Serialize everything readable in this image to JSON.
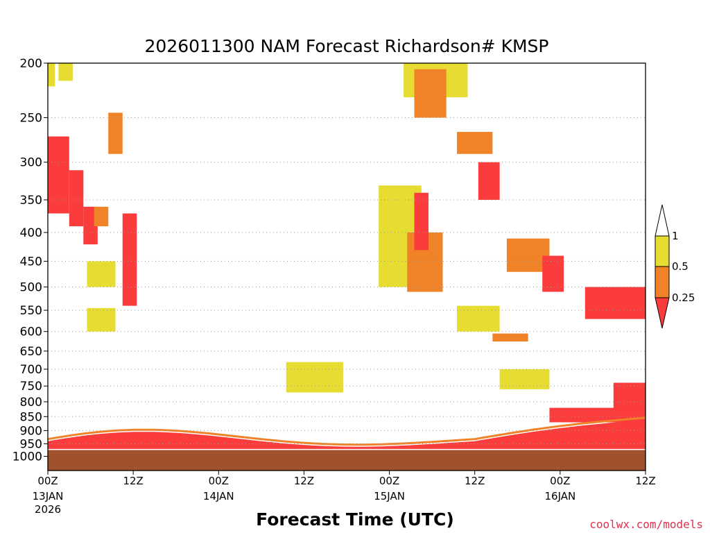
{
  "chart_data": {
    "type": "heatmap",
    "title": "2026011300 NAM Forecast Richardson# KMSP",
    "xlabel": "Forecast Time (UTC)",
    "ylabel": "",
    "x_range_hours": [
      0,
      84
    ],
    "y_range_hPa": [
      200,
      1000
    ],
    "y_ticks": [
      {
        "value": 200,
        "label": "200"
      },
      {
        "value": 250,
        "label": "250"
      },
      {
        "value": 300,
        "label": "300"
      },
      {
        "value": 350,
        "label": "350"
      },
      {
        "value": 400,
        "label": "400"
      },
      {
        "value": 450,
        "label": "450"
      },
      {
        "value": 500,
        "label": "500"
      },
      {
        "value": 550,
        "label": "550"
      },
      {
        "value": 600,
        "label": "600"
      },
      {
        "value": 650,
        "label": "650"
      },
      {
        "value": 700,
        "label": "700"
      },
      {
        "value": 750,
        "label": "750"
      },
      {
        "value": 800,
        "label": "800"
      },
      {
        "value": 850,
        "label": "850"
      },
      {
        "value": 900,
        "label": "900"
      },
      {
        "value": 950,
        "label": "950"
      },
      {
        "value": 1000,
        "label": "1000"
      }
    ],
    "x_ticks": [
      {
        "hour": 0,
        "label": "00Z",
        "date": "13JAN",
        "year": "2026"
      },
      {
        "hour": 12,
        "label": "12Z",
        "date": "",
        "year": ""
      },
      {
        "hour": 24,
        "label": "00Z",
        "date": "14JAN",
        "year": ""
      },
      {
        "hour": 36,
        "label": "12Z",
        "date": "",
        "year": ""
      },
      {
        "hour": 48,
        "label": "00Z",
        "date": "15JAN",
        "year": ""
      },
      {
        "hour": 60,
        "label": "12Z",
        "date": "",
        "year": ""
      },
      {
        "hour": 72,
        "label": "00Z",
        "date": "16JAN",
        "year": ""
      },
      {
        "hour": 84,
        "label": "12Z",
        "date": "",
        "year": ""
      }
    ],
    "colorbar": {
      "levels": [
        {
          "label": "1",
          "value": 1.0
        },
        {
          "label": "0.5",
          "value": 0.5
        },
        {
          "label": "0.25",
          "value": 0.25
        }
      ],
      "bins": [
        {
          "range": "> 1",
          "color": "#ffffff"
        },
        {
          "range": "0.5 - 1",
          "color": "#e6dc32"
        },
        {
          "range": "0.25 - 0.5",
          "color": "#f08228"
        },
        {
          "range": "< 0.25",
          "color": "#fa3c3c"
        }
      ]
    },
    "regions": [
      {
        "hours": [
          0,
          3
        ],
        "p": [
          270,
          370
        ],
        "ri_bin": "<0.25"
      },
      {
        "hours": [
          3,
          5
        ],
        "p": [
          310,
          390
        ],
        "ri_bin": "<0.25"
      },
      {
        "hours": [
          0,
          1
        ],
        "p": [
          200,
          220
        ],
        "ri_bin": "0.5-1"
      },
      {
        "hours": [
          1.5,
          3.5
        ],
        "p": [
          200,
          215
        ],
        "ri_bin": "0.5-1"
      },
      {
        "hours": [
          5,
          7
        ],
        "p": [
          360,
          420
        ],
        "ri_bin": "<0.25"
      },
      {
        "hours": [
          6.5,
          8.5
        ],
        "p": [
          360,
          390
        ],
        "ri_bin": "0.25-0.5"
      },
      {
        "hours": [
          8.5,
          10.5
        ],
        "p": [
          245,
          290
        ],
        "ri_bin": "0.25-0.5"
      },
      {
        "hours": [
          10.5,
          12.5
        ],
        "p": [
          370,
          540
        ],
        "ri_bin": "<0.25"
      },
      {
        "hours": [
          5.5,
          9.5
        ],
        "p": [
          450,
          500
        ],
        "ri_bin": "0.5-1"
      },
      {
        "hours": [
          5.5,
          9.5
        ],
        "p": [
          545,
          600
        ],
        "ri_bin": "0.5-1"
      },
      {
        "hours": [
          33.5,
          41.5
        ],
        "p": [
          680,
          770
        ],
        "ri_bin": "0.5-1"
      },
      {
        "hours": [
          46.5,
          52.5
        ],
        "p": [
          330,
          500
        ],
        "ri_bin": "0.5-1"
      },
      {
        "hours": [
          50.5,
          55.5
        ],
        "p": [
          400,
          510
        ],
        "ri_bin": "0.25-0.5"
      },
      {
        "hours": [
          51.5,
          53.5
        ],
        "p": [
          340,
          430
        ],
        "ri_bin": "<0.25"
      },
      {
        "hours": [
          50,
          59
        ],
        "p": [
          200,
          230
        ],
        "ri_bin": "0.5-1"
      },
      {
        "hours": [
          51.5,
          56
        ],
        "p": [
          205,
          250
        ],
        "ri_bin": "0.25-0.5"
      },
      {
        "hours": [
          57.5,
          62.5
        ],
        "p": [
          265,
          290
        ],
        "ri_bin": "0.25-0.5"
      },
      {
        "hours": [
          60.5,
          63.5
        ],
        "p": [
          300,
          350
        ],
        "ri_bin": "<0.25"
      },
      {
        "hours": [
          57.5,
          63.5
        ],
        "p": [
          540,
          600
        ],
        "ri_bin": "0.5-1"
      },
      {
        "hours": [
          64.5,
          70.5
        ],
        "p": [
          410,
          470
        ],
        "ri_bin": "0.25-0.5"
      },
      {
        "hours": [
          69.5,
          72.5
        ],
        "p": [
          440,
          510
        ],
        "ri_bin": "<0.25"
      },
      {
        "hours": [
          75.5,
          84
        ],
        "p": [
          500,
          570
        ],
        "ri_bin": "<0.25"
      },
      {
        "hours": [
          62.5,
          67.5
        ],
        "p": [
          605,
          625
        ],
        "ri_bin": "0.25-0.5"
      },
      {
        "hours": [
          63.5,
          70.5
        ],
        "p": [
          700,
          760
        ],
        "ri_bin": "0.5-1"
      },
      {
        "hours": [
          79.5,
          84
        ],
        "p": [
          740,
          830
        ],
        "ri_bin": "<0.25"
      },
      {
        "hours": [
          70.5,
          84
        ],
        "p": [
          820,
          870
        ],
        "ri_bin": "<0.25"
      }
    ],
    "surface_layer": {
      "p_top": 975,
      "color": "#a0522d"
    },
    "boundary_layer_note": "Ri < 0.25 band between roughly 880 and 975 hPa across the whole period"
  },
  "credit": "coolwx.com/models"
}
